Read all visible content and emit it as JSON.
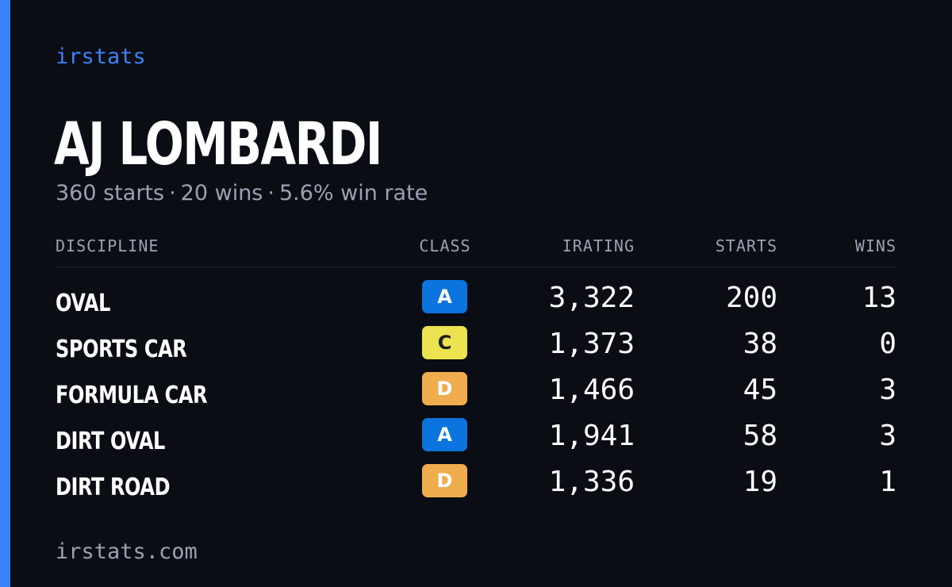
{
  "brand": "irstats",
  "driver": {
    "name": "AJ LOMBARDI",
    "starts_text": "360 starts",
    "wins_text": "20 wins",
    "win_rate_text": "5.6% win rate",
    "separator": "·"
  },
  "table": {
    "headers": {
      "discipline": "DISCIPLINE",
      "class": "CLASS",
      "irating": "IRATING",
      "starts": "STARTS",
      "wins": "WINS"
    },
    "rows": [
      {
        "discipline": "OVAL",
        "class": "A",
        "irating": "3,322",
        "starts": "200",
        "wins": "13"
      },
      {
        "discipline": "SPORTS CAR",
        "class": "C",
        "irating": "1,373",
        "starts": "38",
        "wins": "0"
      },
      {
        "discipline": "FORMULA CAR",
        "class": "D",
        "irating": "1,466",
        "starts": "45",
        "wins": "3"
      },
      {
        "discipline": "DIRT OVAL",
        "class": "A",
        "irating": "1,941",
        "starts": "58",
        "wins": "3"
      },
      {
        "discipline": "DIRT ROAD",
        "class": "D",
        "irating": "1,336",
        "starts": "19",
        "wins": "1"
      }
    ]
  },
  "footer": {
    "url": "irstats.com"
  },
  "colors": {
    "accent": "#3b82f6",
    "background": "#0b0d14",
    "class_A": "#0b74de",
    "class_C": "#ede24f",
    "class_D": "#f0ad4e"
  }
}
